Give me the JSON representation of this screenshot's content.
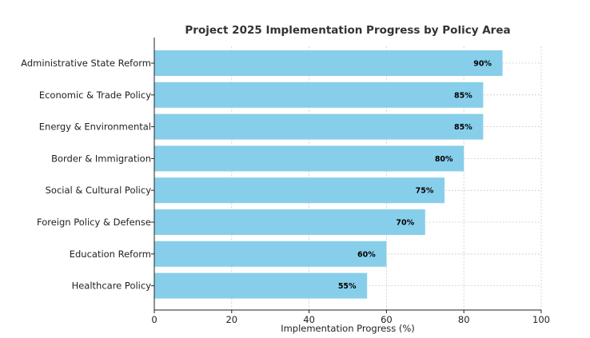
{
  "chart_data": {
    "type": "bar",
    "orientation": "horizontal",
    "title": "Project 2025 Implementation Progress by Policy Area",
    "xlabel": "Implementation Progress (%)",
    "ylabel": "",
    "xlim": [
      0,
      100
    ],
    "xticks": [
      0,
      20,
      40,
      60,
      80,
      100
    ],
    "grid": true,
    "bar_color": "#87CEEB",
    "categories": [
      "Administrative State Reform",
      "Economic & Trade Policy",
      "Energy & Environmental",
      "Border & Immigration",
      "Social & Cultural Policy",
      "Foreign Policy & Defense",
      "Education Reform",
      "Healthcare Policy"
    ],
    "values": [
      90,
      85,
      85,
      80,
      75,
      70,
      60,
      55
    ],
    "data_labels": [
      "90%",
      "85%",
      "85%",
      "80%",
      "75%",
      "70%",
      "60%",
      "55%"
    ]
  }
}
